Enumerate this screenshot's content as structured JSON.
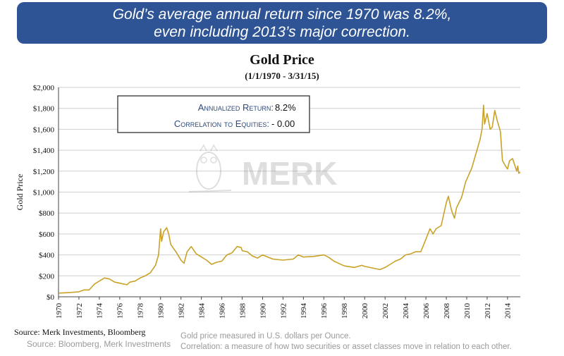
{
  "banner": {
    "line1": "Gold’s average annual return since 1970 was 8.2%,",
    "line2": "even including 2013’s major correction."
  },
  "chart_data": {
    "type": "line",
    "title": "Gold Price",
    "subtitle": "(1/1/1970 - 3/31/15)",
    "ylabel": "Gold Price",
    "xlim": [
      1970,
      2015.25
    ],
    "ylim": [
      0,
      2000
    ],
    "y_ticks": [
      0,
      200,
      400,
      600,
      800,
      1000,
      1200,
      1400,
      1600,
      1800,
      2000
    ],
    "y_tick_labels": [
      "$0",
      "$200",
      "$400",
      "$600",
      "$800",
      "$1,000",
      "$1,200",
      "$1,400",
      "$1,600",
      "$1,800",
      "$2,000"
    ],
    "x_ticks": [
      1970,
      1972,
      1974,
      1976,
      1978,
      1980,
      1982,
      1984,
      1986,
      1988,
      1990,
      1992,
      1994,
      1996,
      1998,
      2000,
      2002,
      2004,
      2006,
      2008,
      2010,
      2012,
      2014
    ],
    "x_tick_labels": [
      "1970",
      "1972",
      "1974",
      "1976",
      "1978",
      "1980",
      "1982",
      "1984",
      "1986",
      "1988",
      "1990",
      "1992",
      "1994",
      "1996",
      "1998",
      "2000",
      "2002",
      "2004",
      "2006",
      "2008",
      "2010",
      "2012",
      "2014"
    ],
    "grid": "horizontal",
    "color": "#c9a227",
    "series": [
      {
        "x": [
          1970,
          1971,
          1972,
          1972.5,
          1973,
          1973.5,
          1974,
          1974.5,
          1975,
          1975.5,
          1976,
          1976.7,
          1977,
          1977.5,
          1978,
          1978.5,
          1979,
          1979.5,
          1979.8,
          1980.0,
          1980.1,
          1980.3,
          1980.6,
          1980.8,
          1981,
          1981.5,
          1982,
          1982.3,
          1982.6,
          1983,
          1983.5,
          1984,
          1984.5,
          1985,
          1985.5,
          1986,
          1986.5,
          1987,
          1987.5,
          1987.9,
          1988,
          1988.5,
          1989,
          1989.5,
          1990,
          1990.5,
          1991,
          1992,
          1993,
          1993.5,
          1994,
          1995,
          1996,
          1996.5,
          1997,
          1998,
          1999,
          1999.7,
          2000,
          2001,
          2001.5,
          2002,
          2002.5,
          2003,
          2003.5,
          2004,
          2004.5,
          2005,
          2005.5,
          2006,
          2006.4,
          2006.7,
          2007,
          2007.5,
          2008,
          2008.2,
          2008.5,
          2008.8,
          2009,
          2009.5,
          2009.9,
          2010,
          2010.5,
          2011,
          2011.3,
          2011.5,
          2011.65,
          2011.75,
          2012,
          2012.3,
          2012.5,
          2012.75,
          2013,
          2013.3,
          2013.5,
          2013.8,
          2014,
          2014.2,
          2014.5,
          2014.9,
          2015,
          2015.1,
          2015.25
        ],
        "y": [
          35,
          40,
          48,
          65,
          65,
          120,
          150,
          180,
          170,
          140,
          130,
          115,
          140,
          150,
          180,
          200,
          230,
          300,
          400,
          650,
          530,
          620,
          660,
          600,
          500,
          430,
          350,
          320,
          430,
          480,
          410,
          380,
          350,
          310,
          330,
          340,
          400,
          420,
          480,
          470,
          440,
          430,
          390,
          370,
          400,
          380,
          360,
          350,
          360,
          400,
          380,
          385,
          400,
          375,
          340,
          295,
          280,
          300,
          290,
          270,
          260,
          280,
          310,
          340,
          360,
          400,
          410,
          430,
          430,
          550,
          650,
          600,
          650,
          680,
          900,
          960,
          830,
          750,
          850,
          950,
          1100,
          1120,
          1230,
          1400,
          1500,
          1600,
          1830,
          1650,
          1750,
          1600,
          1620,
          1780,
          1680,
          1580,
          1300,
          1250,
          1220,
          1300,
          1320,
          1200,
          1250,
          1180,
          1190
        ]
      }
    ],
    "annotation_box": {
      "rows": [
        {
          "label": "Annualized Return:",
          "value": "8.2%"
        },
        {
          "label": "Correlation to Equities:",
          "value": "- 0.00"
        }
      ]
    },
    "watermark": "MERK"
  },
  "footer": {
    "source_primary": "Source: Merk Investments, Bloomberg",
    "source_secondary": "Source: Bloomberg, Merk Investments",
    "note1": "Gold price measured in U.S. dollars per Ounce.",
    "note2": "Correlation: a measure of how two securities or asset classes move in relation to each other."
  }
}
